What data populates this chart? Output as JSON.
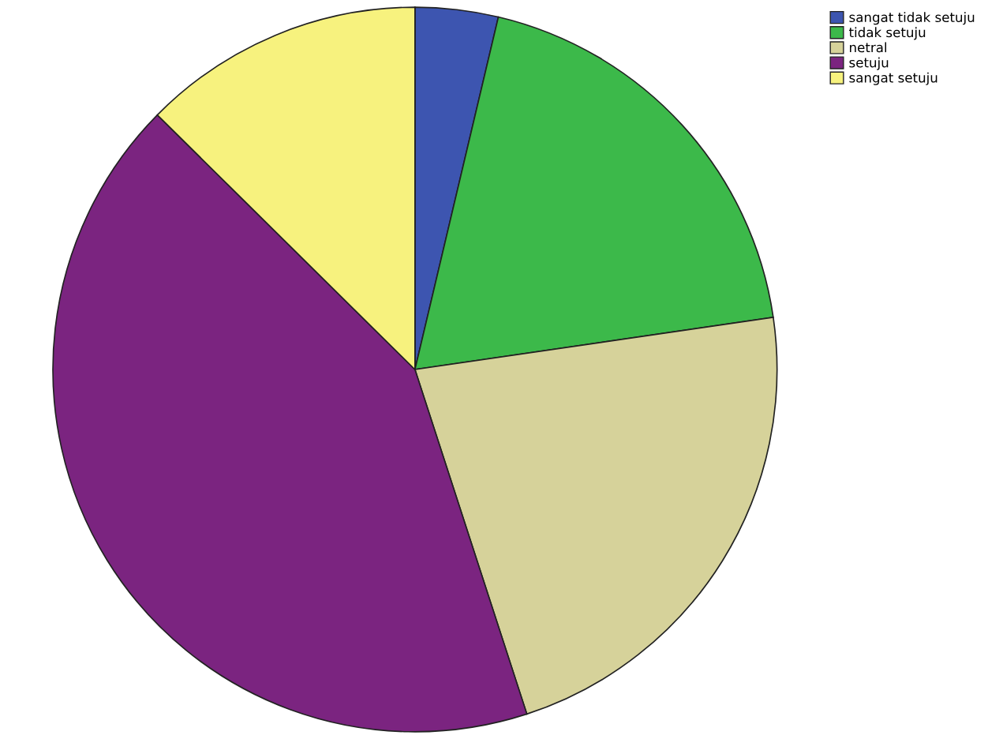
{
  "chart_data": {
    "type": "pie",
    "categories": [
      "sangat tidak setuju",
      "tidak setuju",
      "netral",
      "setuju",
      "sangat setuju"
    ],
    "values": [
      3.7,
      19,
      22.3,
      42.4,
      12.6
    ],
    "colors": [
      "#3d55b0",
      "#3cb94a",
      "#d6d29a",
      "#7b2480",
      "#f7f27e"
    ],
    "legend": "top right"
  }
}
